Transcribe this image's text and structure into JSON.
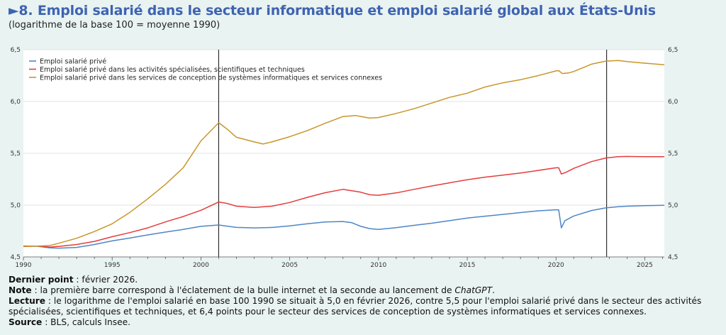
{
  "title": "►8. Emploi salarié dans le secteur informatique et emploi salarié global aux États-Unis",
  "subtitle": "(logarithme de la base 100 = moyenne 1990)",
  "notes": {
    "dernier_label": "Dernier point",
    "dernier_text": " : février 2026.",
    "note_label": "Note",
    "note_text_1": " : la première barre correspond à l'éclatement de la bulle internet et la seconde au lancement de ",
    "note_italic": "ChatGPT",
    "note_text_2": ".",
    "lecture_label": "Lecture",
    "lecture_text": " : le logarithme de l'emploi salarié en base 100 1990 se situait à 5,0 en février 2026, contre 5,5 pour l'emploi salarié privé dans le secteur des activités spécialisées, scientifiques et techniques, et 6,4 points pour le secteur des services de conception de systèmes informatiques et services connexes.",
    "source_label": "Source",
    "source_text": " : BLS, calculs Insee."
  },
  "chart_data": {
    "type": "line",
    "title": "Emploi salarié dans le secteur informatique et emploi salarié global aux États-Unis",
    "xlim": [
      1990,
      2026.1
    ],
    "ylim": [
      4.5,
      6.5
    ],
    "x_ticks": [
      1990,
      1995,
      2000,
      2005,
      2010,
      2015,
      2020,
      2025
    ],
    "y_ticks": [
      {
        "value": 4.5,
        "label": "4,5"
      },
      {
        "value": 5.0,
        "label": "5,0"
      },
      {
        "value": 5.5,
        "label": "5,5"
      },
      {
        "value": 6.0,
        "label": "6,0"
      },
      {
        "value": 6.5,
        "label": "6,5"
      }
    ],
    "vertical_lines": [
      2001.0,
      2022.85
    ],
    "legend_position": "top-left",
    "series": [
      {
        "name": "Emploi salarié privé",
        "color": "#4f86c6",
        "points": [
          [
            1990,
            4.605
          ],
          [
            1990.8,
            4.603
          ],
          [
            1991.5,
            4.588
          ],
          [
            1992,
            4.585
          ],
          [
            1993,
            4.592
          ],
          [
            1994,
            4.62
          ],
          [
            1995,
            4.655
          ],
          [
            1996,
            4.682
          ],
          [
            1997,
            4.712
          ],
          [
            1998,
            4.74
          ],
          [
            1999,
            4.765
          ],
          [
            2000,
            4.795
          ],
          [
            2001,
            4.808
          ],
          [
            2001.5,
            4.796
          ],
          [
            2002,
            4.785
          ],
          [
            2003,
            4.78
          ],
          [
            2004,
            4.784
          ],
          [
            2005,
            4.8
          ],
          [
            2006,
            4.82
          ],
          [
            2007,
            4.838
          ],
          [
            2008,
            4.842
          ],
          [
            2008.5,
            4.83
          ],
          [
            2009,
            4.795
          ],
          [
            2009.5,
            4.773
          ],
          [
            2010,
            4.765
          ],
          [
            2011,
            4.782
          ],
          [
            2012,
            4.805
          ],
          [
            2013,
            4.825
          ],
          [
            2014,
            4.85
          ],
          [
            2015,
            4.875
          ],
          [
            2016,
            4.893
          ],
          [
            2017,
            4.91
          ],
          [
            2018,
            4.928
          ],
          [
            2019,
            4.945
          ],
          [
            2020.0,
            4.955
          ],
          [
            2020.15,
            4.955
          ],
          [
            2020.3,
            4.78
          ],
          [
            2020.5,
            4.85
          ],
          [
            2021,
            4.895
          ],
          [
            2022,
            4.948
          ],
          [
            2022.8,
            4.973
          ],
          [
            2023.5,
            4.985
          ],
          [
            2024,
            4.99
          ],
          [
            2025,
            4.995
          ],
          [
            2026.1,
            4.998
          ]
        ]
      },
      {
        "name": "Emploi salarié privé dans les activités spécialisées, scientifiques et techniques",
        "color": "#e63c3c",
        "points": [
          [
            1990,
            4.605
          ],
          [
            1990.8,
            4.605
          ],
          [
            1991.5,
            4.595
          ],
          [
            1992,
            4.602
          ],
          [
            1993,
            4.62
          ],
          [
            1994,
            4.65
          ],
          [
            1995,
            4.695
          ],
          [
            1996,
            4.735
          ],
          [
            1997,
            4.78
          ],
          [
            1998,
            4.838
          ],
          [
            1999,
            4.89
          ],
          [
            2000,
            4.95
          ],
          [
            2001,
            5.03
          ],
          [
            2001.5,
            5.015
          ],
          [
            2002,
            4.99
          ],
          [
            2003,
            4.978
          ],
          [
            2004,
            4.99
          ],
          [
            2005,
            5.025
          ],
          [
            2006,
            5.075
          ],
          [
            2007,
            5.12
          ],
          [
            2008,
            5.152
          ],
          [
            2009,
            5.125
          ],
          [
            2009.5,
            5.1
          ],
          [
            2010,
            5.095
          ],
          [
            2011,
            5.118
          ],
          [
            2012,
            5.152
          ],
          [
            2013,
            5.185
          ],
          [
            2014,
            5.215
          ],
          [
            2015,
            5.245
          ],
          [
            2016,
            5.27
          ],
          [
            2017,
            5.29
          ],
          [
            2018,
            5.31
          ],
          [
            2019,
            5.335
          ],
          [
            2020.0,
            5.36
          ],
          [
            2020.15,
            5.36
          ],
          [
            2020.3,
            5.3
          ],
          [
            2020.6,
            5.32
          ],
          [
            2021,
            5.355
          ],
          [
            2022,
            5.42
          ],
          [
            2022.8,
            5.455
          ],
          [
            2023.5,
            5.468
          ],
          [
            2024,
            5.47
          ],
          [
            2025,
            5.468
          ],
          [
            2026.1,
            5.468
          ]
        ]
      },
      {
        "name": "Emploi salarié privé dans les services de conception de systèmes informatiques et services connexes",
        "color": "#c8962a",
        "points": [
          [
            1990,
            4.6
          ],
          [
            1990.8,
            4.605
          ],
          [
            1991.5,
            4.61
          ],
          [
            1992,
            4.632
          ],
          [
            1993,
            4.68
          ],
          [
            1994,
            4.745
          ],
          [
            1995,
            4.82
          ],
          [
            1996,
            4.93
          ],
          [
            1997,
            5.06
          ],
          [
            1998,
            5.2
          ],
          [
            1999,
            5.36
          ],
          [
            2000,
            5.62
          ],
          [
            2001,
            5.795
          ],
          [
            2001.5,
            5.73
          ],
          [
            2002,
            5.655
          ],
          [
            2003,
            5.61
          ],
          [
            2003.5,
            5.59
          ],
          [
            2004,
            5.61
          ],
          [
            2005,
            5.66
          ],
          [
            2006,
            5.72
          ],
          [
            2007,
            5.79
          ],
          [
            2008,
            5.855
          ],
          [
            2008.7,
            5.865
          ],
          [
            2009.5,
            5.84
          ],
          [
            2010,
            5.845
          ],
          [
            2011,
            5.885
          ],
          [
            2012,
            5.93
          ],
          [
            2013,
            5.985
          ],
          [
            2014,
            6.04
          ],
          [
            2015,
            6.08
          ],
          [
            2016,
            6.14
          ],
          [
            2017,
            6.18
          ],
          [
            2018,
            6.21
          ],
          [
            2019,
            6.25
          ],
          [
            2020.0,
            6.295
          ],
          [
            2020.15,
            6.298
          ],
          [
            2020.35,
            6.27
          ],
          [
            2020.7,
            6.275
          ],
          [
            2021,
            6.29
          ],
          [
            2022,
            6.36
          ],
          [
            2022.8,
            6.39
          ],
          [
            2023.5,
            6.395
          ],
          [
            2024,
            6.385
          ],
          [
            2025,
            6.37
          ],
          [
            2026.1,
            6.355
          ]
        ]
      }
    ]
  }
}
